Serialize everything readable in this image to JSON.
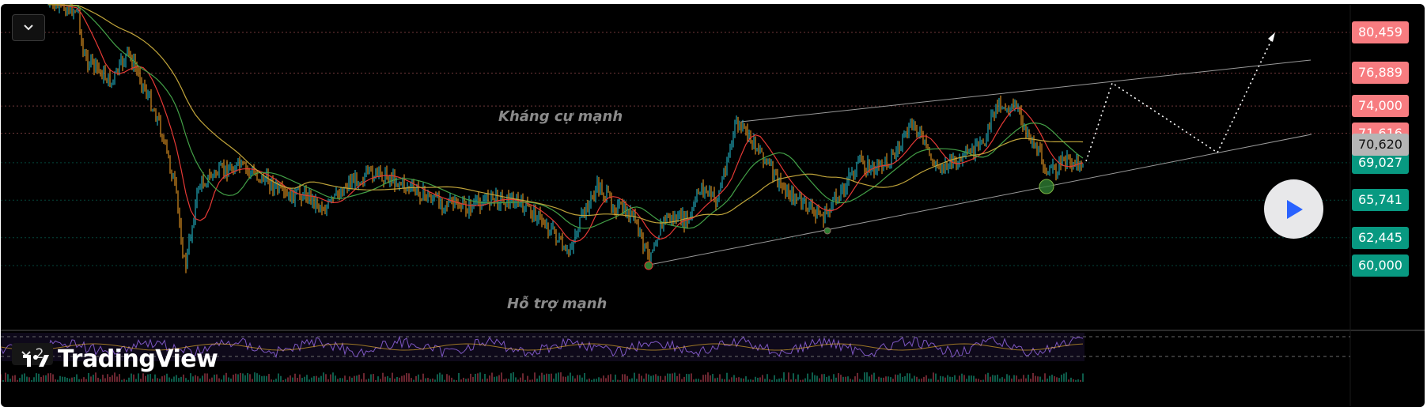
{
  "header": {
    "collapse_icon": "chevron-down-icon"
  },
  "price_scale": {
    "levels": [
      {
        "label": "80,459",
        "value": 80459,
        "color": "#f77c80"
      },
      {
        "label": "76,889",
        "value": 76889,
        "color": "#f77c80"
      },
      {
        "label": "74,000",
        "value": 74000,
        "color": "#f77c80"
      },
      {
        "label": "71,616",
        "value": 71616,
        "color": "#f77c80"
      },
      {
        "label": "69,027",
        "value": 69027,
        "color": "#089981"
      },
      {
        "label": "65,741",
        "value": 65741,
        "color": "#089981"
      },
      {
        "label": "62,445",
        "value": 62445,
        "color": "#089981"
      },
      {
        "label": "60,000",
        "value": 60000,
        "color": "#089981"
      }
    ],
    "current_price": {
      "label": "70,620",
      "value": 70620,
      "color": "#9e9e9e"
    }
  },
  "annotations": {
    "resistance": "Kháng cự mạnh",
    "support": "Hỗ trợ  mạnh"
  },
  "bottom_pane": {
    "pane_count": "2",
    "toggle_icon": "chevron-down-icon"
  },
  "branding": {
    "logo_text": "TradingView",
    "logo_icon": "tradingview-logo-icon"
  },
  "overlay": {
    "play_icon": "play-icon"
  },
  "colors": {
    "background": "#000000",
    "bull": "#26c6da",
    "bear": "#ffa726",
    "ma_fast": "#e53935",
    "ma_mid": "#43a047",
    "ma_slow": "#c0a43a",
    "rsi": "#7e57c2",
    "up_level": "#f77c80",
    "down_level": "#089981"
  }
}
